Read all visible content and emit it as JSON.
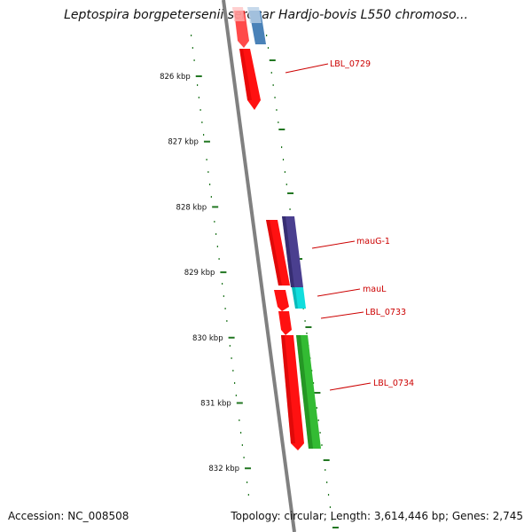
{
  "title": "Leptospira borgpetersenii serovar Hardjo-bovis L550 chromoso...",
  "footer": {
    "accession": "Accession: NC_008508",
    "summary": "Topology: circular; Length: 3,614,446 bp; Genes: 2,745"
  },
  "colors": {
    "backbone": "#808080",
    "ticks": "#227722",
    "gene_red": "#ff1111",
    "gene_steelblue": "#4a82b8",
    "gene_purple": "#4a3f8f",
    "gene_cyan": "#11dddd",
    "gene_green": "#33bb33",
    "label_red": "#cc0000"
  },
  "kbp_marks": [
    {
      "label": "826 kbp",
      "kbp": 826
    },
    {
      "label": "827 kbp",
      "kbp": 827
    },
    {
      "label": "828 kbp",
      "kbp": 828
    },
    {
      "label": "829 kbp",
      "kbp": 829
    },
    {
      "label": "830 kbp",
      "kbp": 830
    },
    {
      "label": "831 kbp",
      "kbp": 831
    },
    {
      "label": "832 kbp",
      "kbp": 832
    }
  ],
  "gene_labels": [
    {
      "id": "LBL_0729",
      "label": "LBL_0729"
    },
    {
      "id": "mauG-1",
      "label": "mauG-1"
    },
    {
      "id": "mauL",
      "label": "mauL"
    },
    {
      "id": "LBL_0733",
      "label": "LBL_0733"
    },
    {
      "id": "LBL_0734",
      "label": "LBL_0734"
    }
  ]
}
